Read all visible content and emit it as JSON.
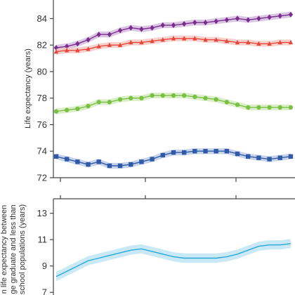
{
  "chart_data": [
    {
      "type": "line",
      "ylabel": "Life expectancy (years)",
      "ylim": [
        72,
        85.4
      ],
      "yticks": [
        72,
        74,
        76,
        78,
        80,
        82,
        84
      ],
      "x": [
        0,
        1,
        2,
        3,
        4,
        5,
        6,
        7,
        8,
        9,
        10,
        11,
        12,
        13,
        14,
        15,
        16,
        17,
        18,
        19,
        20,
        21,
        22
      ],
      "xlim": [
        0,
        22.4
      ],
      "grid": false,
      "series": [
        {
          "marker": "diamond",
          "color": "#7b2d8e",
          "band_color": "#cdb3da",
          "values": [
            81.8,
            81.9,
            82.1,
            82.4,
            82.8,
            82.8,
            83.1,
            83.3,
            83.2,
            83.3,
            83.5,
            83.5,
            83.6,
            83.7,
            83.7,
            83.8,
            83.9,
            84.0,
            83.9,
            84.0,
            84.1,
            84.2,
            84.3
          ]
        },
        {
          "marker": "triangle",
          "color": "#e8463a",
          "band_color": "#f7c3bd",
          "values": [
            81.5,
            81.6,
            81.6,
            81.7,
            81.9,
            82.0,
            82.0,
            82.2,
            82.2,
            82.3,
            82.4,
            82.5,
            82.5,
            82.5,
            82.4,
            82.4,
            82.3,
            82.2,
            82.2,
            82.1,
            82.1,
            82.2,
            82.2
          ]
        },
        {
          "marker": "circle",
          "color": "#7ac143",
          "band_color": "#cfe8b8",
          "values": [
            77.0,
            77.1,
            77.2,
            77.4,
            77.7,
            77.7,
            77.9,
            78.0,
            78.0,
            78.2,
            78.2,
            78.2,
            78.2,
            78.1,
            78.0,
            77.9,
            77.7,
            77.5,
            77.3,
            77.3,
            77.3,
            77.3,
            77.3
          ]
        },
        {
          "marker": "square",
          "color": "#2e5aa8",
          "band_color": "#b4c3e4",
          "values": [
            73.6,
            73.4,
            73.2,
            73.0,
            73.2,
            72.9,
            72.9,
            73.0,
            73.2,
            73.4,
            73.7,
            73.9,
            73.9,
            74.0,
            74.0,
            74.0,
            74.0,
            73.8,
            73.6,
            73.5,
            73.4,
            73.5,
            73.6
          ]
        }
      ]
    },
    {
      "type": "area",
      "ylabel_lines": [
        "n life expectancy between",
        "ge graduate and less than",
        "school populations (years)"
      ],
      "ylim": [
        6.8,
        14.1
      ],
      "yticks": [
        7,
        9,
        11,
        13
      ],
      "x": [
        0,
        1,
        2,
        3,
        4,
        5,
        6,
        7,
        8,
        9,
        10,
        11,
        12,
        13,
        14,
        15,
        16,
        17,
        18,
        19,
        20,
        21,
        22
      ],
      "xlim": [
        0,
        22.4
      ],
      "grid": false,
      "series": [
        {
          "color": "#2aa8d8",
          "band_color": "#b7e2f3",
          "values": [
            8.2,
            8.6,
            9.0,
            9.4,
            9.6,
            9.8,
            10.0,
            10.2,
            10.3,
            10.1,
            9.9,
            9.7,
            9.6,
            9.6,
            9.6,
            9.6,
            9.7,
            9.9,
            10.2,
            10.5,
            10.6,
            10.6,
            10.7
          ]
        }
      ]
    }
  ]
}
